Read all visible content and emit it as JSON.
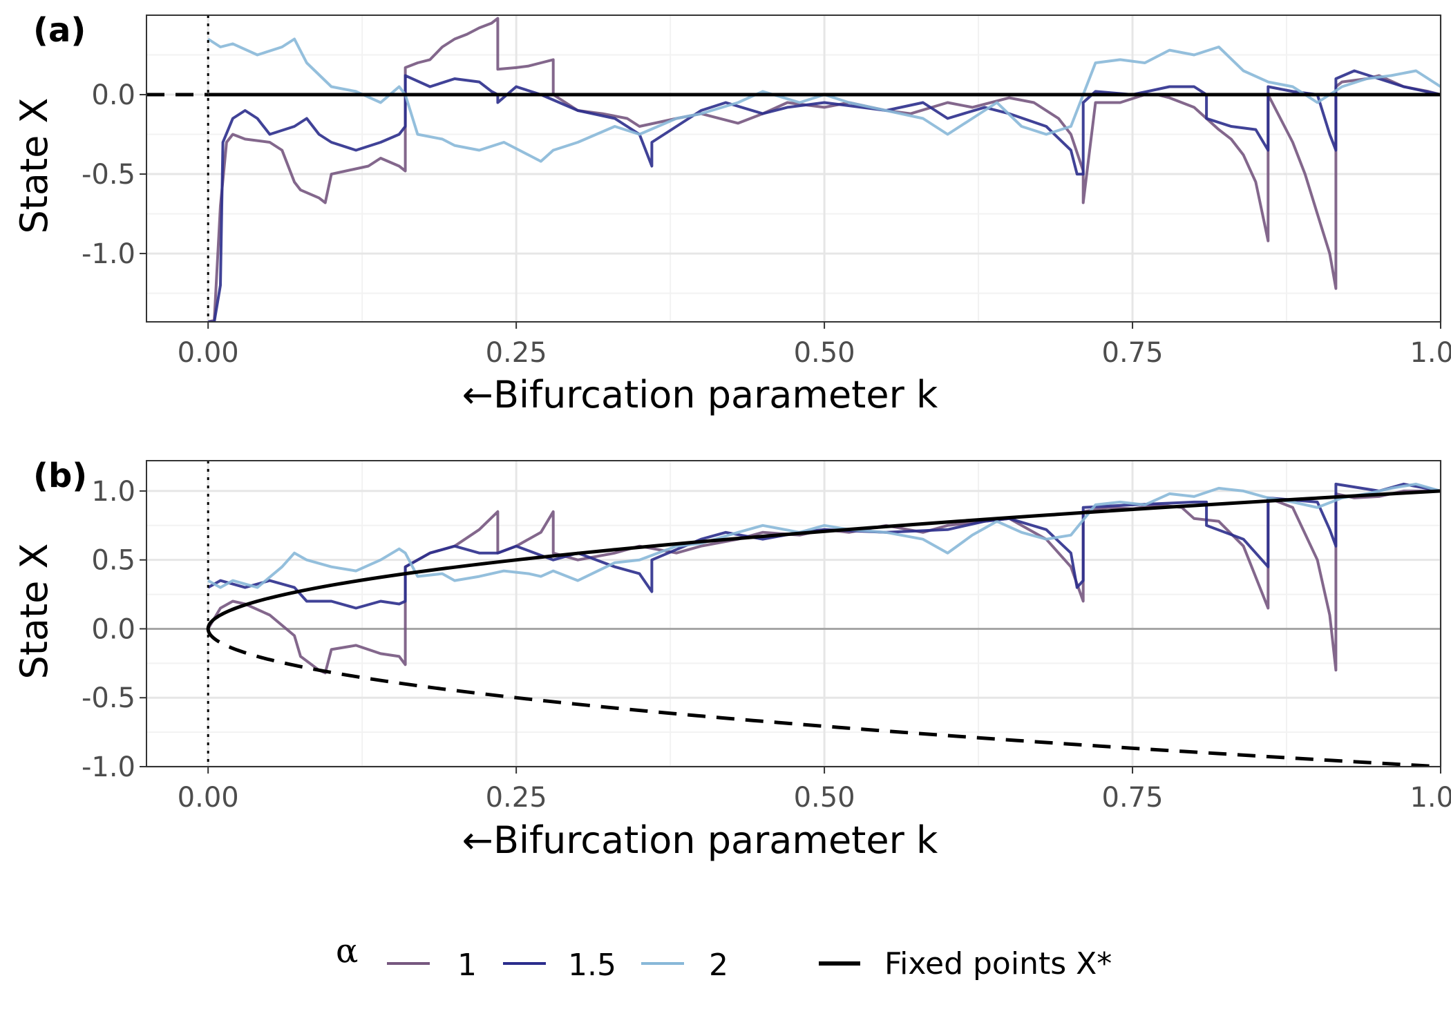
{
  "colors": {
    "alpha_1": "#76577f",
    "alpha_1_5": "#2b2d8c",
    "alpha_2": "#88b8d8",
    "fixed": "#000000",
    "grid_major": "#e6e6e6",
    "grid_minor": "#f2f2f2",
    "zero_line": "#a6a6a6"
  },
  "chart_data": [
    {
      "type": "line",
      "panel_label": "(a)",
      "xlabel": "←Bifurcation parameter k",
      "ylabel": "State X",
      "xlim": [
        -0.05,
        1.0
      ],
      "ylim": [
        -1.43,
        0.5
      ],
      "x_ticks": [
        0.0,
        0.25,
        0.5,
        0.75,
        1.0
      ],
      "x_tick_labels": [
        "0.00",
        "0.25",
        "0.50",
        "0.75",
        "1.00"
      ],
      "y_ticks": [
        -1.0,
        -0.5,
        0.0
      ],
      "y_tick_labels": [
        "-1.0",
        "-0.5",
        "0.0"
      ],
      "grid": true,
      "vline_x": 0.0,
      "fixed_points": [
        {
          "name": "Fixed points X*",
          "style": "dashed",
          "x_range": [
            -0.05,
            0.0
          ],
          "value": 0.0
        },
        {
          "name": "Fixed points X*",
          "style": "solid",
          "x_range": [
            0.0,
            1.0
          ],
          "value": 0.0
        }
      ],
      "series": [
        {
          "name": "1",
          "color_key": "alpha_1",
          "x": [
            0.0,
            0.005,
            0.01,
            0.015,
            0.02,
            0.03,
            0.05,
            0.06,
            0.07,
            0.075,
            0.09,
            0.095,
            0.1,
            0.13,
            0.14,
            0.155,
            0.16,
            0.16,
            0.17,
            0.18,
            0.19,
            0.2,
            0.21,
            0.22,
            0.23,
            0.235,
            0.235,
            0.25,
            0.26,
            0.27,
            0.28,
            0.28,
            0.3,
            0.32,
            0.34,
            0.35,
            0.38,
            0.4,
            0.43,
            0.45,
            0.47,
            0.5,
            0.52,
            0.55,
            0.57,
            0.6,
            0.62,
            0.65,
            0.67,
            0.69,
            0.7,
            0.71,
            0.71,
            0.72,
            0.74,
            0.76,
            0.77,
            0.78,
            0.79,
            0.8,
            0.81,
            0.82,
            0.83,
            0.84,
            0.85,
            0.86,
            0.86,
            0.87,
            0.88,
            0.89,
            0.9,
            0.91,
            0.915,
            0.915,
            0.92,
            0.94,
            0.95,
            0.97,
            0.99,
            1.0
          ],
          "y": [
            -1.43,
            -1.42,
            -0.7,
            -0.3,
            -0.25,
            -0.28,
            -0.3,
            -0.35,
            -0.55,
            -0.6,
            -0.65,
            -0.68,
            -0.5,
            -0.45,
            -0.4,
            -0.45,
            -0.48,
            0.17,
            0.2,
            0.22,
            0.3,
            0.35,
            0.38,
            0.42,
            0.45,
            0.48,
            0.16,
            0.17,
            0.18,
            0.2,
            0.22,
            0.0,
            -0.1,
            -0.12,
            -0.15,
            -0.2,
            -0.15,
            -0.12,
            -0.18,
            -0.12,
            -0.05,
            -0.08,
            -0.05,
            -0.1,
            -0.12,
            -0.05,
            -0.08,
            -0.02,
            -0.05,
            -0.15,
            -0.25,
            -0.48,
            -0.68,
            -0.05,
            -0.05,
            0.0,
            0.0,
            -0.02,
            -0.05,
            -0.08,
            -0.15,
            -0.22,
            -0.28,
            -0.38,
            -0.55,
            -0.92,
            0.0,
            -0.15,
            -0.3,
            -0.5,
            -0.75,
            -1.0,
            -1.22,
            0.05,
            0.08,
            0.1,
            0.12,
            0.05,
            0.02,
            0.0
          ]
        },
        {
          "name": "1.5",
          "color_key": "alpha_1_5",
          "x": [
            0.0,
            0.005,
            0.01,
            0.012,
            0.02,
            0.03,
            0.04,
            0.05,
            0.07,
            0.08,
            0.09,
            0.1,
            0.12,
            0.14,
            0.155,
            0.16,
            0.16,
            0.18,
            0.2,
            0.22,
            0.23,
            0.235,
            0.235,
            0.25,
            0.27,
            0.3,
            0.33,
            0.35,
            0.36,
            0.36,
            0.4,
            0.42,
            0.45,
            0.47,
            0.5,
            0.55,
            0.58,
            0.6,
            0.63,
            0.65,
            0.68,
            0.7,
            0.705,
            0.71,
            0.71,
            0.72,
            0.75,
            0.78,
            0.8,
            0.81,
            0.81,
            0.83,
            0.85,
            0.86,
            0.86,
            0.88,
            0.9,
            0.91,
            0.915,
            0.915,
            0.93,
            0.95,
            0.97,
            1.0
          ],
          "y": [
            -1.43,
            -1.43,
            -1.2,
            -0.3,
            -0.15,
            -0.1,
            -0.15,
            -0.25,
            -0.2,
            -0.15,
            -0.25,
            -0.3,
            -0.35,
            -0.3,
            -0.25,
            -0.2,
            0.12,
            0.05,
            0.1,
            0.08,
            0.02,
            0.0,
            -0.05,
            0.05,
            0.0,
            -0.1,
            -0.15,
            -0.25,
            -0.45,
            -0.3,
            -0.1,
            -0.05,
            -0.12,
            -0.08,
            -0.05,
            -0.1,
            -0.05,
            -0.15,
            -0.08,
            -0.12,
            -0.2,
            -0.35,
            -0.5,
            -0.5,
            -0.05,
            0.02,
            0.0,
            0.05,
            0.05,
            0.0,
            -0.15,
            -0.2,
            -0.22,
            -0.35,
            0.05,
            0.02,
            0.0,
            -0.25,
            -0.35,
            0.1,
            0.15,
            0.1,
            0.05,
            0.0
          ]
        },
        {
          "name": "2",
          "color_key": "alpha_2",
          "x": [
            0.0,
            0.01,
            0.02,
            0.04,
            0.06,
            0.07,
            0.08,
            0.1,
            0.12,
            0.14,
            0.155,
            0.16,
            0.17,
            0.19,
            0.2,
            0.22,
            0.24,
            0.26,
            0.27,
            0.28,
            0.3,
            0.33,
            0.35,
            0.38,
            0.4,
            0.43,
            0.45,
            0.48,
            0.5,
            0.52,
            0.55,
            0.58,
            0.6,
            0.62,
            0.64,
            0.66,
            0.68,
            0.7,
            0.72,
            0.74,
            0.76,
            0.78,
            0.8,
            0.82,
            0.84,
            0.86,
            0.88,
            0.9,
            0.92,
            0.94,
            0.96,
            0.98,
            1.0
          ],
          "y": [
            0.35,
            0.3,
            0.32,
            0.25,
            0.3,
            0.35,
            0.2,
            0.05,
            0.02,
            -0.05,
            0.05,
            0.0,
            -0.25,
            -0.28,
            -0.32,
            -0.35,
            -0.3,
            -0.38,
            -0.42,
            -0.35,
            -0.3,
            -0.2,
            -0.25,
            -0.15,
            -0.12,
            -0.05,
            0.02,
            -0.05,
            0.0,
            -0.05,
            -0.1,
            -0.15,
            -0.25,
            -0.15,
            -0.05,
            -0.2,
            -0.25,
            -0.2,
            0.2,
            0.22,
            0.2,
            0.28,
            0.25,
            0.3,
            0.15,
            0.08,
            0.05,
            -0.05,
            0.05,
            0.1,
            0.12,
            0.15,
            0.05
          ]
        }
      ]
    },
    {
      "type": "line",
      "panel_label": "(b)",
      "xlabel": "←Bifurcation parameter k",
      "ylabel": "State X",
      "xlim": [
        -0.05,
        1.0
      ],
      "ylim": [
        -1.0,
        1.22
      ],
      "x_ticks": [
        0.0,
        0.25,
        0.5,
        0.75,
        1.0
      ],
      "x_tick_labels": [
        "0.00",
        "0.25",
        "0.50",
        "0.75",
        "1.00"
      ],
      "y_ticks": [
        -1.0,
        -0.5,
        0.0,
        0.5,
        1.0
      ],
      "y_tick_labels": [
        "-1.0",
        "-0.5",
        "0.0",
        "0.5",
        "1.0"
      ],
      "grid": true,
      "vline_x": 0.0,
      "hline_y": 0.0,
      "fixed_points": [
        {
          "name": "Fixed points X*",
          "style": "solid",
          "function": "sqrt(k)",
          "x_range": [
            0.0,
            1.0
          ]
        },
        {
          "name": "Fixed points X*",
          "style": "dashed",
          "function": "-sqrt(k)",
          "x_range": [
            0.0,
            1.0
          ]
        }
      ],
      "series": [
        {
          "name": "1",
          "color_key": "alpha_1",
          "x": [
            0.0,
            0.01,
            0.02,
            0.03,
            0.05,
            0.07,
            0.075,
            0.09,
            0.095,
            0.1,
            0.12,
            0.13,
            0.14,
            0.155,
            0.16,
            0.16,
            0.18,
            0.2,
            0.22,
            0.235,
            0.235,
            0.25,
            0.27,
            0.28,
            0.28,
            0.3,
            0.33,
            0.35,
            0.38,
            0.4,
            0.43,
            0.45,
            0.48,
            0.5,
            0.52,
            0.55,
            0.58,
            0.6,
            0.63,
            0.65,
            0.68,
            0.7,
            0.71,
            0.71,
            0.73,
            0.75,
            0.77,
            0.79,
            0.8,
            0.82,
            0.84,
            0.86,
            0.86,
            0.88,
            0.9,
            0.91,
            0.915,
            0.915,
            0.93,
            0.95,
            0.97,
            1.0
          ],
          "y": [
            0.0,
            0.15,
            0.2,
            0.18,
            0.1,
            -0.05,
            -0.2,
            -0.3,
            -0.32,
            -0.15,
            -0.12,
            -0.15,
            -0.18,
            -0.2,
            -0.26,
            0.45,
            0.55,
            0.6,
            0.72,
            0.85,
            0.55,
            0.6,
            0.7,
            0.85,
            0.55,
            0.5,
            0.55,
            0.6,
            0.55,
            0.6,
            0.65,
            0.7,
            0.68,
            0.72,
            0.7,
            0.75,
            0.7,
            0.75,
            0.78,
            0.8,
            0.65,
            0.45,
            0.2,
            0.85,
            0.88,
            0.87,
            0.9,
            0.88,
            0.8,
            0.78,
            0.6,
            0.15,
            0.95,
            0.88,
            0.5,
            0.1,
            -0.3,
            0.98,
            0.95,
            0.96,
            1.0,
            1.0
          ]
        },
        {
          "name": "1.5",
          "color_key": "alpha_1_5",
          "x": [
            0.0,
            0.01,
            0.03,
            0.05,
            0.07,
            0.08,
            0.1,
            0.12,
            0.14,
            0.155,
            0.16,
            0.16,
            0.18,
            0.2,
            0.22,
            0.235,
            0.25,
            0.28,
            0.3,
            0.33,
            0.35,
            0.36,
            0.36,
            0.4,
            0.42,
            0.45,
            0.48,
            0.5,
            0.55,
            0.6,
            0.63,
            0.65,
            0.68,
            0.7,
            0.705,
            0.71,
            0.71,
            0.75,
            0.8,
            0.81,
            0.81,
            0.84,
            0.86,
            0.86,
            0.9,
            0.91,
            0.915,
            0.915,
            0.95,
            0.97,
            1.0
          ],
          "y": [
            0.3,
            0.35,
            0.3,
            0.35,
            0.3,
            0.2,
            0.2,
            0.15,
            0.2,
            0.18,
            0.2,
            0.45,
            0.55,
            0.6,
            0.55,
            0.55,
            0.6,
            0.5,
            0.55,
            0.45,
            0.4,
            0.27,
            0.5,
            0.65,
            0.7,
            0.65,
            0.7,
            0.72,
            0.7,
            0.72,
            0.78,
            0.8,
            0.72,
            0.55,
            0.3,
            0.35,
            0.88,
            0.9,
            0.92,
            0.92,
            0.75,
            0.65,
            0.45,
            0.95,
            0.92,
            0.72,
            0.6,
            1.05,
            1.0,
            1.05,
            1.0
          ]
        },
        {
          "name": "2",
          "color_key": "alpha_2",
          "x": [
            0.0,
            0.01,
            0.02,
            0.04,
            0.06,
            0.07,
            0.08,
            0.1,
            0.12,
            0.14,
            0.155,
            0.16,
            0.17,
            0.19,
            0.2,
            0.22,
            0.24,
            0.26,
            0.27,
            0.28,
            0.3,
            0.33,
            0.35,
            0.38,
            0.4,
            0.43,
            0.45,
            0.48,
            0.5,
            0.52,
            0.55,
            0.58,
            0.6,
            0.62,
            0.64,
            0.66,
            0.68,
            0.7,
            0.72,
            0.74,
            0.76,
            0.78,
            0.8,
            0.82,
            0.84,
            0.86,
            0.88,
            0.9,
            0.92,
            0.94,
            0.96,
            0.98,
            1.0
          ],
          "y": [
            0.35,
            0.3,
            0.35,
            0.3,
            0.45,
            0.55,
            0.5,
            0.45,
            0.42,
            0.5,
            0.58,
            0.55,
            0.38,
            0.4,
            0.35,
            0.38,
            0.42,
            0.4,
            0.38,
            0.42,
            0.35,
            0.48,
            0.5,
            0.6,
            0.62,
            0.7,
            0.75,
            0.7,
            0.75,
            0.72,
            0.7,
            0.65,
            0.55,
            0.68,
            0.78,
            0.7,
            0.65,
            0.68,
            0.9,
            0.92,
            0.9,
            0.98,
            0.96,
            1.02,
            1.0,
            0.95,
            0.92,
            0.88,
            0.95,
            0.98,
            1.02,
            1.05,
            1.0
          ]
        }
      ]
    }
  ],
  "legend": {
    "title": "α",
    "items": [
      {
        "label": "1",
        "color_key": "alpha_1"
      },
      {
        "label": "1.5",
        "color_key": "alpha_1_5"
      },
      {
        "label": "2",
        "color_key": "alpha_2"
      }
    ],
    "fixed_label": "Fixed points X*",
    "placement": "bottom"
  }
}
